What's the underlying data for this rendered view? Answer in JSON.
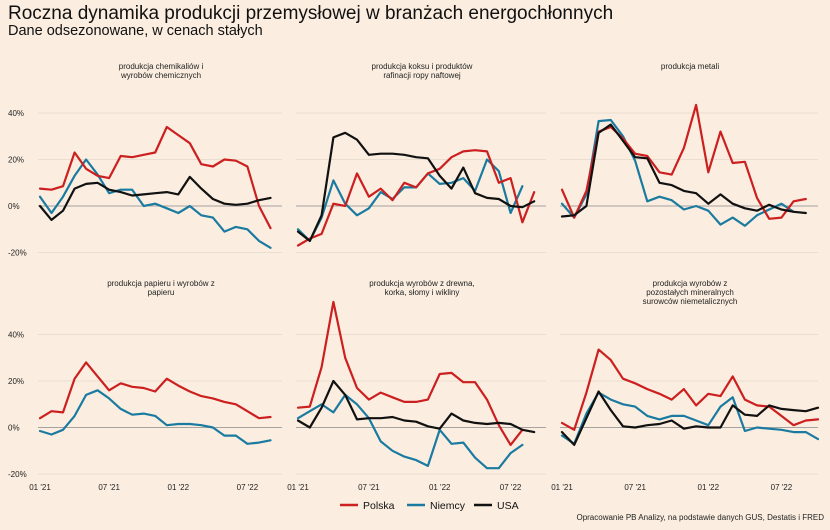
{
  "title": "Roczna dynamika produkcji przemysłowej w branżach energochłonnych",
  "subtitle": "Dane odsezonowane, w cenach stałych",
  "source": "Opracowanie PB Analizy, na podstawie danych GUS, Destatis i FRED",
  "colors": {
    "Polska": "#cc1f1f",
    "Niemcy": "#1a7aa0",
    "USA": "#111111"
  },
  "chart_data": {
    "type": "line",
    "layout": "small-multiples-2x3",
    "x_labels": [
      "01 '21",
      "07 '21",
      "01 '22",
      "07 '22"
    ],
    "y_ticks": [
      "40%",
      "20%",
      "0%",
      "-20%"
    ],
    "ylim": [
      -25,
      50
    ],
    "series_names": [
      "Polska",
      "Niemcy",
      "USA"
    ],
    "legend": "bottom-center",
    "grid": true,
    "panels": [
      {
        "title_lines": [
          "produkcja chemikaliów i",
          "wyrobów chemicznych"
        ],
        "series": [
          {
            "name": "Polska",
            "values": [
              7.5,
              7,
              8.5,
              23,
              16,
              13,
              12,
              21.5,
              21,
              22,
              23,
              34,
              30.5,
              27,
              18,
              17,
              20,
              19.5,
              17,
              0,
              -9.5
            ]
          },
          {
            "name": "Niemcy",
            "values": [
              4,
              -3,
              4,
              13,
              20,
              13.5,
              5.5,
              7,
              7,
              0,
              1,
              -1,
              -3,
              0,
              -4,
              -5,
              -11,
              -9,
              -10,
              -15,
              -18
            ]
          },
          {
            "name": "USA",
            "values": [
              0,
              -6,
              -2,
              7.5,
              9.5,
              10,
              7,
              6,
              4.5,
              5,
              5.5,
              6,
              5,
              12.5,
              7.5,
              3,
              1,
              0.5,
              1,
              2.5,
              3.5
            ]
          }
        ]
      },
      {
        "title_lines": [
          "produkcja koksu i produktów",
          "rafinacji ropy naftowej"
        ],
        "series": [
          {
            "name": "Polska",
            "values": [
              -17,
              -14,
              -12,
              1,
              0,
              14,
              4,
              7.5,
              2.5,
              10,
              8,
              14,
              16,
              21,
              23.5,
              24,
              23.5,
              10,
              12,
              -7,
              6
            ]
          },
          {
            "name": "Niemcy",
            "values": [
              -10,
              -15,
              -5,
              11,
              1,
              -4,
              -1,
              6,
              3,
              8,
              8,
              14,
              9.5,
              10,
              12,
              6.5,
              20,
              15,
              -3,
              8.5
            ]
          },
          {
            "name": "USA",
            "values": [
              -11,
              -15,
              -4,
              29.5,
              31.5,
              28.5,
              22,
              22.5,
              22.5,
              22,
              21,
              20.5,
              13,
              7.5,
              16.5,
              5.5,
              3.5,
              3,
              0,
              -0.5,
              2
            ]
          }
        ]
      },
      {
        "title_lines": [
          "produkcja metali"
        ],
        "series": [
          {
            "name": "Polska",
            "values": [
              7,
              -5,
              6.5,
              32,
              34,
              29,
              22.5,
              21.5,
              14.5,
              13.5,
              25,
              43.5,
              14.5,
              32,
              18.5,
              19,
              3.5,
              -5.5,
              -5,
              2,
              3
            ]
          },
          {
            "name": "Niemcy",
            "values": [
              1,
              -5,
              5,
              36.5,
              37,
              30,
              19.5,
              2,
              4,
              2.5,
              -1.5,
              0,
              -2,
              -8,
              -5,
              -8.5,
              -4,
              -1.5,
              1,
              -2.5
            ]
          },
          {
            "name": "USA",
            "values": [
              -4.5,
              -4,
              0,
              31.5,
              35,
              28,
              21,
              20.5,
              10,
              9,
              6.5,
              5.5,
              1,
              5,
              1,
              -1,
              -2,
              0.5,
              -1.5,
              -2.5,
              -3
            ]
          }
        ]
      },
      {
        "title_lines": [
          "produkcja papieru i wyrobów z",
          "papieru"
        ],
        "series": [
          {
            "name": "Polska",
            "values": [
              4,
              7,
              6.5,
              21,
              28,
              22,
              16,
              19,
              17.5,
              17,
              15.5,
              21,
              18,
              15.5,
              13.5,
              12.5,
              11,
              10,
              7,
              4,
              4.5
            ]
          },
          {
            "name": "Niemcy",
            "values": [
              -1.5,
              -3,
              -1,
              5,
              14,
              16,
              12.5,
              8,
              5.5,
              6,
              5,
              1,
              1.5,
              1.5,
              1,
              0,
              -3.5,
              -3.5,
              -7,
              -6.5,
              -5.5
            ]
          },
          {
            "name": "USA",
            "values": []
          }
        ]
      },
      {
        "title_lines": [
          "produkcja wyrobów z drewna,",
          "korka, słomy i wikliny"
        ],
        "series": [
          {
            "name": "Polska",
            "values": [
              8.5,
              9,
              26,
              54,
              30,
              17,
              12,
              15,
              13,
              11,
              11,
              12,
              23,
              23.5,
              19.5,
              19.5,
              12,
              1,
              -7.5,
              -1
            ]
          },
          {
            "name": "Niemcy",
            "values": [
              4,
              7,
              10,
              6.5,
              14,
              10,
              4,
              -6,
              -10,
              -12.5,
              -14,
              -16.5,
              -1,
              -7,
              -6.5,
              -13,
              -17.5,
              -17.5,
              -11,
              -7.5
            ]
          },
          {
            "name": "USA",
            "values": [
              3,
              0,
              8.5,
              20,
              14,
              3.5,
              4,
              4,
              4.5,
              3,
              2.5,
              0.5,
              -0.5,
              6,
              3,
              2,
              1.5,
              2,
              1.5,
              -1,
              -2
            ]
          }
        ]
      },
      {
        "title_lines": [
          "produkcja wyrobów z",
          "pozostałych mineralnych",
          "surowców niemetalicznych"
        ],
        "series": [
          {
            "name": "Polska",
            "values": [
              2,
              -1,
              15,
              33.5,
              29,
              21,
              19,
              16.5,
              14.5,
              12,
              16.5,
              9.5,
              14.5,
              13.5,
              22,
              12,
              9.5,
              9,
              5,
              1,
              3,
              3.5
            ]
          },
          {
            "name": "Niemcy",
            "values": [
              -3.5,
              -7,
              6,
              15,
              12,
              10,
              9,
              5,
              3.5,
              5,
              5,
              3,
              1,
              9,
              13,
              -1.5,
              0,
              -0.5,
              -1,
              -2,
              -2,
              -5
            ]
          },
          {
            "name": "USA",
            "values": [
              -2,
              -7.5,
              4,
              15.5,
              7.5,
              0.5,
              0,
              1,
              1.5,
              3,
              -0.5,
              0.5,
              0,
              0,
              9.5,
              5.5,
              5,
              9.5,
              8,
              7.5,
              7,
              8.5
            ]
          }
        ]
      }
    ]
  }
}
